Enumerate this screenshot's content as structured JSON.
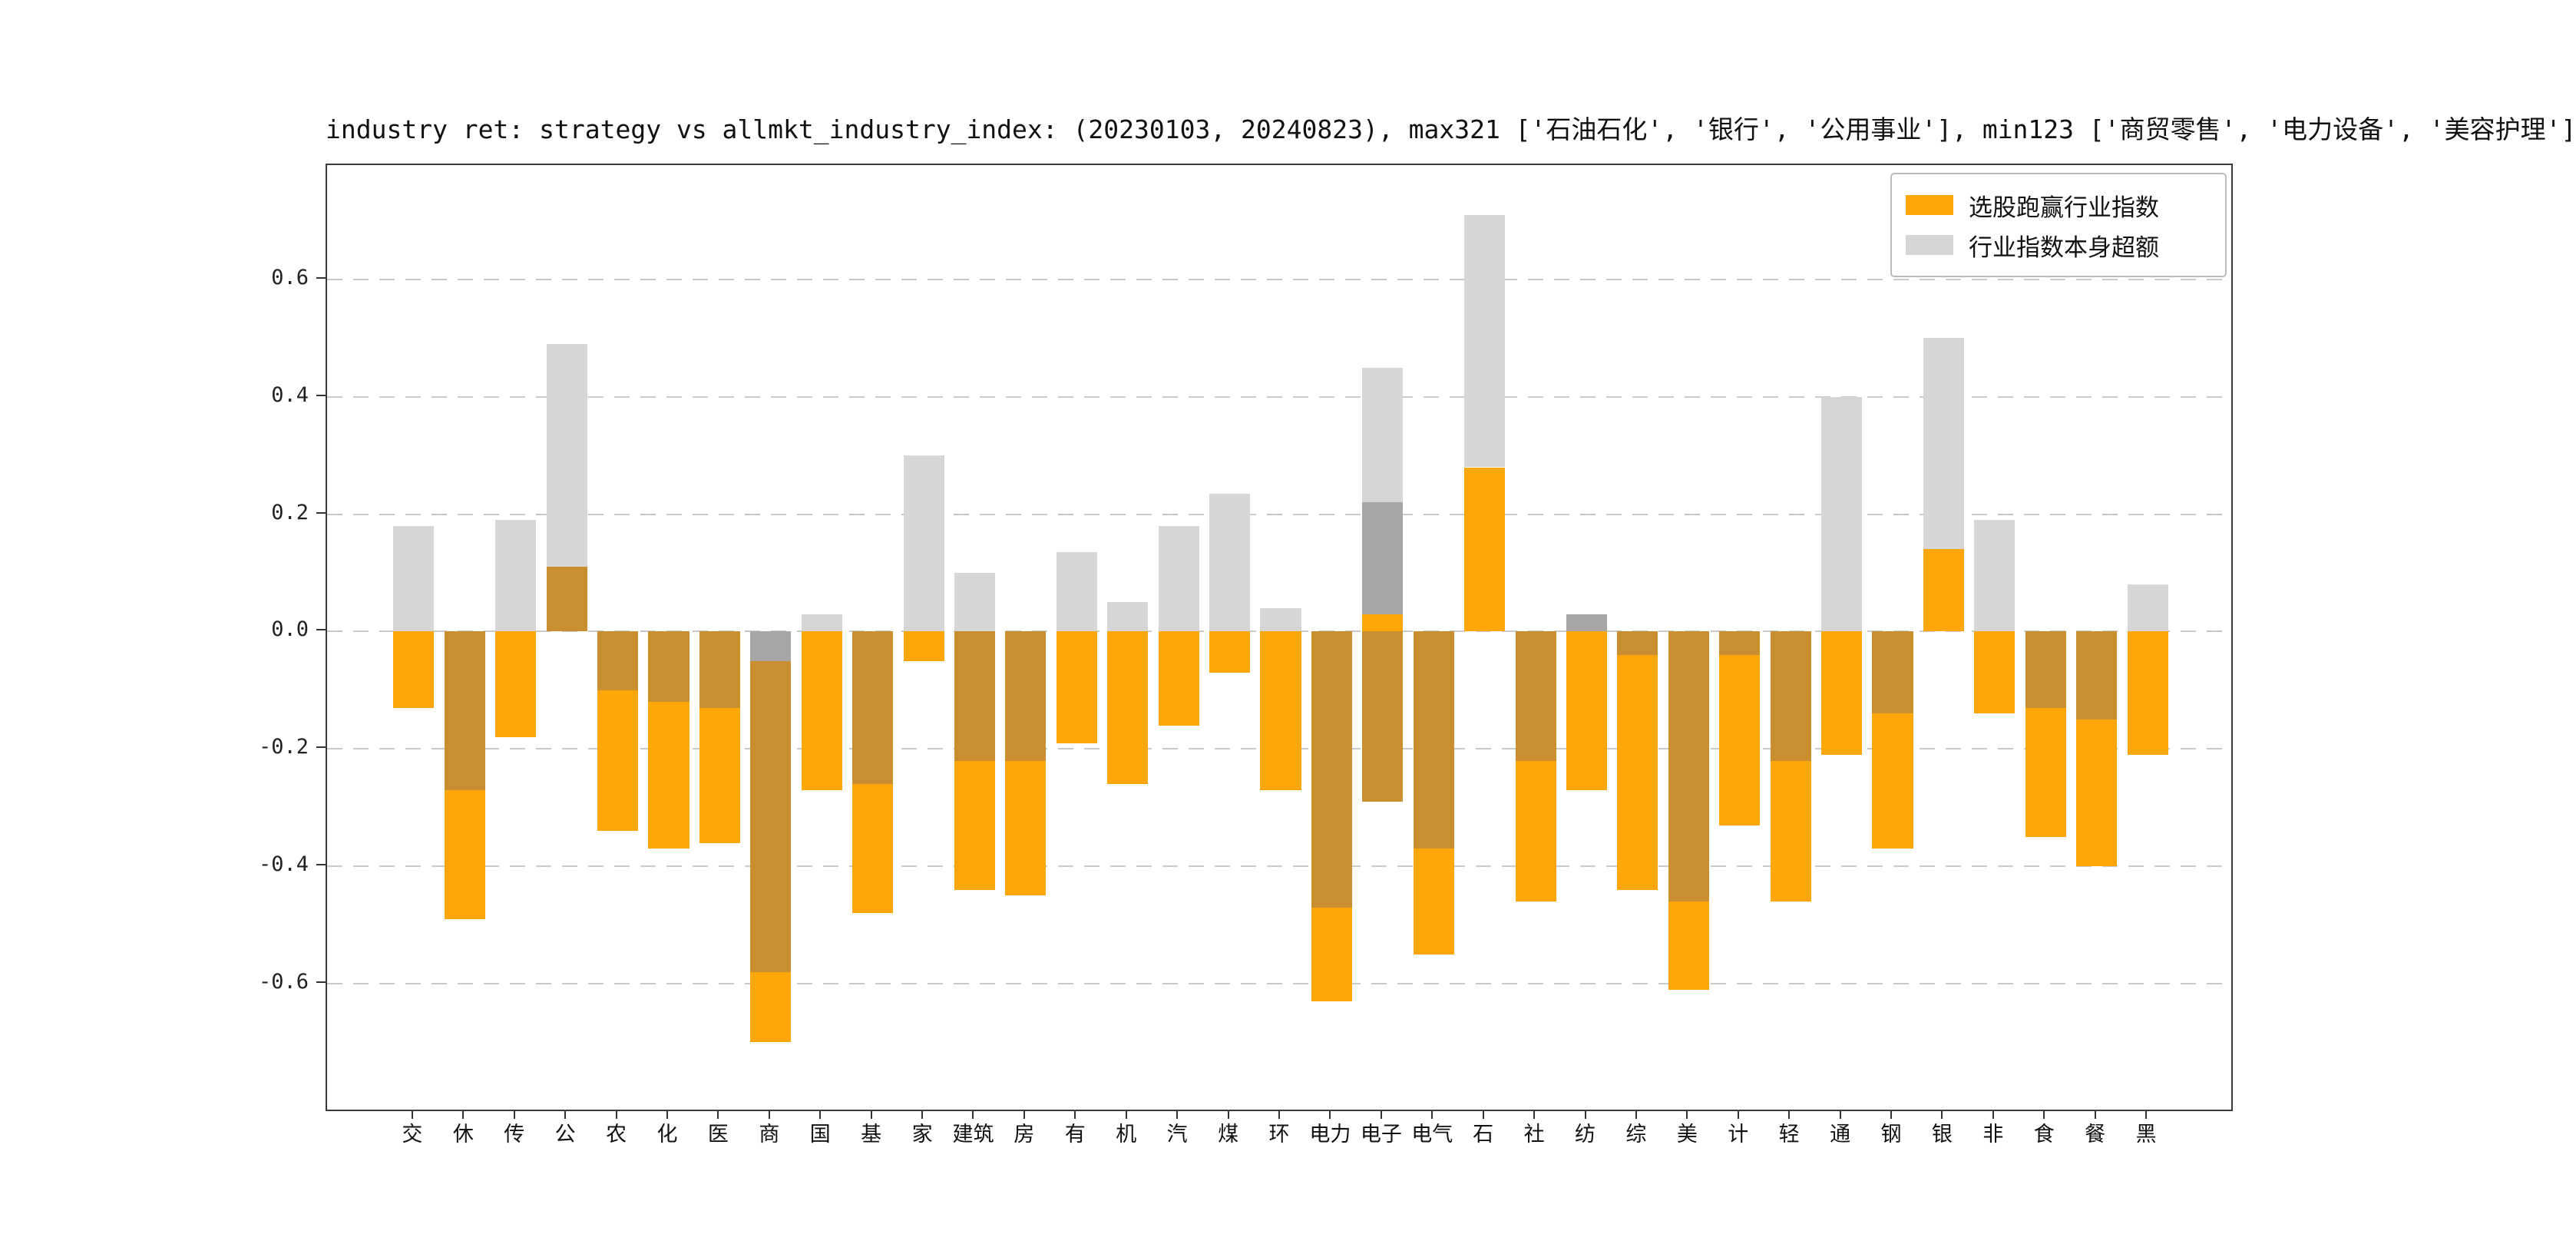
{
  "title": "industry ret: strategy vs allmkt_industry_index: (20230103, 20240823), max321 ['石油石化', '银行', '公用事业'], min123 ['商贸零售', '电力设备', '美容护理']",
  "legend": {
    "items": [
      {
        "label": "选股跑赢行业指数",
        "color": "#ffa60a"
      },
      {
        "label": "行业指数本身超额",
        "color": "#d6d6d6"
      }
    ],
    "position": "upper right"
  },
  "axes": {
    "y_ticks": [
      0.6,
      0.4,
      0.2,
      0.0,
      -0.2,
      -0.4,
      -0.6
    ],
    "y_tick_labels": [
      "0.6",
      "0.4",
      "0.2",
      "0.0",
      "-0.2",
      "-0.4",
      "-0.6"
    ],
    "ylim": [
      -0.82,
      0.795
    ],
    "grid": "dashed horizontal"
  },
  "colors": {
    "o": "#ffa60a",
    "do": "#c98f2f",
    "lg": "#d6d6d6",
    "dg": "#a6a6a6"
  },
  "chart_data": {
    "type": "bar",
    "title": "industry ret: strategy vs allmkt_industry_index: (20230103, 20240823), max321 ['石油石化', '银行', '公用事业'], min123 ['商贸零售', '电力设备', '美容护理']",
    "xlabel": "",
    "ylabel": "",
    "ylim": [
      -0.82,
      0.795
    ],
    "grid": true,
    "legend_position": "upper right",
    "categories": [
      "交",
      "休",
      "传",
      "公",
      "农",
      "化",
      "医",
      "商",
      "国",
      "基",
      "家",
      "建筑",
      "房",
      "有",
      "机",
      "汽",
      "煤",
      "环",
      "电力",
      "电子",
      "电气",
      "石",
      "社",
      "纺",
      "综",
      "美",
      "计",
      "轻",
      "通",
      "钢",
      "银",
      "非",
      "食",
      "餐",
      "黑"
    ],
    "series": [
      {
        "name": "选股跑赢行业指数",
        "color": "#ffa60a",
        "values": [
          -0.13,
          -0.49,
          -0.18,
          0.11,
          -0.34,
          -0.37,
          -0.36,
          -0.7,
          -0.27,
          -0.48,
          -0.05,
          -0.44,
          -0.45,
          -0.19,
          -0.26,
          -0.16,
          -0.07,
          -0.27,
          -0.63,
          0.03,
          -0.55,
          0.28,
          -0.46,
          -0.27,
          -0.44,
          -0.61,
          -0.33,
          -0.46,
          -0.21,
          -0.37,
          0.14,
          -0.14,
          -0.35,
          -0.4,
          -0.21
        ]
      },
      {
        "name": "行业指数本身超额",
        "color": "#d6d6d6",
        "values": [
          0.18,
          -0.27,
          0.19,
          0.49,
          -0.1,
          -0.12,
          -0.13,
          -0.58,
          0.03,
          -0.26,
          0.3,
          0.1,
          -0.22,
          0.135,
          0.05,
          0.18,
          0.235,
          0.04,
          -0.47,
          0.45,
          -0.37,
          0.71,
          -0.22,
          0.03,
          -0.04,
          -0.46,
          -0.04,
          -0.22,
          0.4,
          -0.14,
          0.5,
          0.19,
          -0.13,
          -0.15,
          0.08
        ]
      }
    ],
    "bar_segments": [
      [
        {
          "c": "lg",
          "a": 0,
          "b": 0.18
        },
        {
          "c": "o",
          "a": 0,
          "b": -0.13
        }
      ],
      [
        {
          "c": "do",
          "a": 0,
          "b": -0.27
        },
        {
          "c": "o",
          "a": -0.27,
          "b": -0.49
        }
      ],
      [
        {
          "c": "lg",
          "a": 0,
          "b": 0.19
        },
        {
          "c": "o",
          "a": 0,
          "b": -0.18
        }
      ],
      [
        {
          "c": "do",
          "a": 0,
          "b": 0.11
        },
        {
          "c": "lg",
          "a": 0.11,
          "b": 0.49
        }
      ],
      [
        {
          "c": "do",
          "a": 0,
          "b": -0.1
        },
        {
          "c": "o",
          "a": -0.1,
          "b": -0.34
        }
      ],
      [
        {
          "c": "do",
          "a": 0,
          "b": -0.12
        },
        {
          "c": "o",
          "a": -0.12,
          "b": -0.37
        }
      ],
      [
        {
          "c": "do",
          "a": 0,
          "b": -0.13
        },
        {
          "c": "o",
          "a": -0.13,
          "b": -0.36
        }
      ],
      [
        {
          "c": "dg",
          "a": 0,
          "b": -0.05
        },
        {
          "c": "do",
          "a": -0.05,
          "b": -0.58
        },
        {
          "c": "o",
          "a": -0.58,
          "b": -0.7
        }
      ],
      [
        {
          "c": "lg",
          "a": 0,
          "b": 0.03
        },
        {
          "c": "o",
          "a": 0,
          "b": -0.27
        }
      ],
      [
        {
          "c": "do",
          "a": 0,
          "b": -0.26
        },
        {
          "c": "o",
          "a": -0.26,
          "b": -0.48
        }
      ],
      [
        {
          "c": "lg",
          "a": 0,
          "b": 0.3
        },
        {
          "c": "o",
          "a": 0,
          "b": -0.05
        }
      ],
      [
        {
          "c": "lg",
          "a": 0,
          "b": 0.1
        },
        {
          "c": "do",
          "a": 0,
          "b": -0.22
        },
        {
          "c": "o",
          "a": -0.22,
          "b": -0.44
        }
      ],
      [
        {
          "c": "do",
          "a": 0,
          "b": -0.22
        },
        {
          "c": "o",
          "a": -0.22,
          "b": -0.45
        }
      ],
      [
        {
          "c": "lg",
          "a": 0,
          "b": 0.135
        },
        {
          "c": "o",
          "a": 0,
          "b": -0.19
        }
      ],
      [
        {
          "c": "lg",
          "a": 0,
          "b": 0.05
        },
        {
          "c": "o",
          "a": 0,
          "b": -0.26
        }
      ],
      [
        {
          "c": "lg",
          "a": 0,
          "b": 0.18
        },
        {
          "c": "o",
          "a": 0,
          "b": -0.16
        }
      ],
      [
        {
          "c": "lg",
          "a": 0,
          "b": 0.235
        },
        {
          "c": "o",
          "a": 0,
          "b": -0.07
        }
      ],
      [
        {
          "c": "lg",
          "a": 0,
          "b": 0.04
        },
        {
          "c": "o",
          "a": 0,
          "b": -0.27
        }
      ],
      [
        {
          "c": "do",
          "a": 0,
          "b": -0.47
        },
        {
          "c": "o",
          "a": -0.47,
          "b": -0.63
        }
      ],
      [
        {
          "c": "o",
          "a": 0,
          "b": 0.03
        },
        {
          "c": "dg",
          "a": 0.03,
          "b": 0.22
        },
        {
          "c": "lg",
          "a": 0.22,
          "b": 0.45
        },
        {
          "c": "do",
          "a": 0,
          "b": -0.29
        }
      ],
      [
        {
          "c": "do",
          "a": 0,
          "b": -0.37
        },
        {
          "c": "o",
          "a": -0.37,
          "b": -0.55
        }
      ],
      [
        {
          "c": "o",
          "a": 0,
          "b": 0.28
        },
        {
          "c": "lg",
          "a": 0.28,
          "b": 0.71
        }
      ],
      [
        {
          "c": "do",
          "a": 0,
          "b": -0.22
        },
        {
          "c": "o",
          "a": -0.22,
          "b": -0.46
        }
      ],
      [
        {
          "c": "dg",
          "a": 0,
          "b": 0.03
        },
        {
          "c": "o",
          "a": 0,
          "b": -0.27
        }
      ],
      [
        {
          "c": "do",
          "a": 0,
          "b": -0.04
        },
        {
          "c": "o",
          "a": -0.04,
          "b": -0.44
        }
      ],
      [
        {
          "c": "do",
          "a": 0,
          "b": -0.46
        },
        {
          "c": "o",
          "a": -0.46,
          "b": -0.61
        }
      ],
      [
        {
          "c": "do",
          "a": 0,
          "b": -0.04
        },
        {
          "c": "o",
          "a": -0.04,
          "b": -0.33
        }
      ],
      [
        {
          "c": "do",
          "a": 0,
          "b": -0.22
        },
        {
          "c": "o",
          "a": -0.22,
          "b": -0.46
        }
      ],
      [
        {
          "c": "lg",
          "a": 0,
          "b": 0.4
        },
        {
          "c": "o",
          "a": 0,
          "b": -0.21
        }
      ],
      [
        {
          "c": "do",
          "a": 0,
          "b": -0.14
        },
        {
          "c": "o",
          "a": -0.14,
          "b": -0.37
        }
      ],
      [
        {
          "c": "o",
          "a": 0,
          "b": 0.14
        },
        {
          "c": "lg",
          "a": 0.14,
          "b": 0.5
        }
      ],
      [
        {
          "c": "lg",
          "a": 0,
          "b": 0.19
        },
        {
          "c": "o",
          "a": 0,
          "b": -0.14
        }
      ],
      [
        {
          "c": "do",
          "a": 0,
          "b": -0.13
        },
        {
          "c": "o",
          "a": -0.13,
          "b": -0.35
        }
      ],
      [
        {
          "c": "do",
          "a": 0,
          "b": -0.15
        },
        {
          "c": "o",
          "a": -0.15,
          "b": -0.4
        }
      ],
      [
        {
          "c": "lg",
          "a": 0,
          "b": 0.08
        },
        {
          "c": "o",
          "a": 0,
          "b": -0.21
        }
      ]
    ]
  }
}
